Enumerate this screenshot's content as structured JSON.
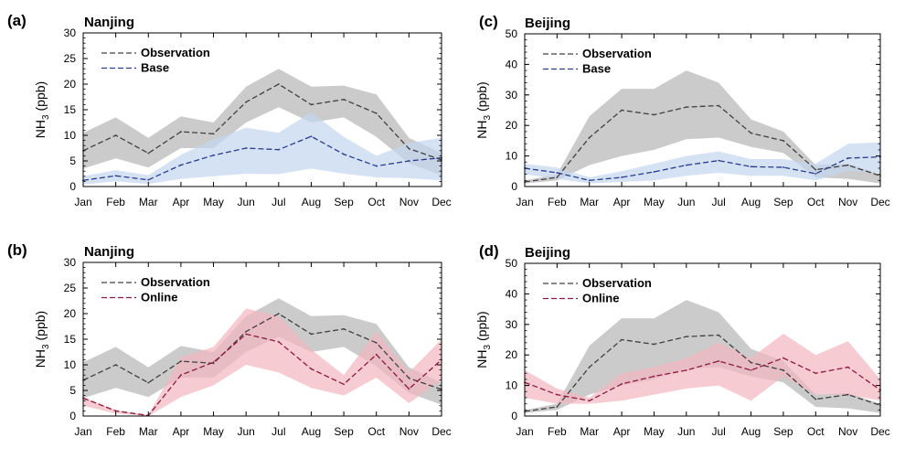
{
  "chart_data": [
    {
      "panel": "(a)",
      "type": "line",
      "title": "Nanjing",
      "ylabel_main": "NH",
      "ylabel_sub": "3",
      "ylabel_unit": " (ppb)",
      "ylim": [
        0,
        30
      ],
      "yticks": [
        0,
        5,
        10,
        15,
        20,
        25,
        30
      ],
      "categories": [
        "Jan",
        "Feb",
        "Mar",
        "Apr",
        "May",
        "Jun",
        "Jul",
        "Aug",
        "Sep",
        "Oct",
        "Nov",
        "Dec"
      ],
      "series": [
        {
          "name": "Observation",
          "color": "#404040",
          "band_color": "#c8c8c8",
          "values": [
            7,
            10,
            6.5,
            10.7,
            10.3,
            16.5,
            20,
            16,
            17,
            14.3,
            7.4,
            5.2
          ],
          "upper": [
            10.5,
            13.5,
            9.5,
            13.7,
            12.5,
            19.5,
            23,
            19.5,
            19.7,
            18,
            9.5,
            6.5
          ],
          "lower": [
            3.5,
            5.5,
            3.7,
            7.5,
            7.5,
            12.5,
            15.5,
            12.5,
            13.5,
            9.7,
            4.5,
            2.2
          ]
        },
        {
          "name": "Base",
          "color": "#2a3c8c",
          "band_color": "#c3d5ee",
          "values": [
            1.2,
            2.1,
            1.3,
            4.2,
            6.1,
            7.5,
            7.2,
            9.8,
            6.3,
            4,
            5,
            5.6
          ],
          "upper": [
            2,
            3.2,
            2.2,
            6.2,
            9.2,
            11.5,
            10.5,
            14.5,
            9.7,
            6,
            8.5,
            9.5
          ],
          "lower": [
            0.4,
            1,
            0.5,
            1.5,
            2,
            2.5,
            2.4,
            3.5,
            2.5,
            1.8,
            1.6,
            1.2
          ]
        }
      ]
    },
    {
      "panel": "(b)",
      "type": "line",
      "title": "Nanjing",
      "ylabel_main": "NH",
      "ylabel_sub": "3",
      "ylabel_unit": " (ppb)",
      "ylim": [
        0,
        30
      ],
      "yticks": [
        0,
        5,
        10,
        15,
        20,
        25,
        30
      ],
      "categories": [
        "Jan",
        "Feb",
        "Mar",
        "Apr",
        "May",
        "Jun",
        "Jul",
        "Aug",
        "Sep",
        "Oct",
        "Nov",
        "Dec"
      ],
      "series": [
        {
          "name": "Observation",
          "color": "#404040",
          "band_color": "#c8c8c8",
          "values": [
            7,
            10,
            6.5,
            10.7,
            10.3,
            16.5,
            20,
            16,
            17,
            14.3,
            7.4,
            5.2
          ],
          "upper": [
            10.5,
            13.5,
            9.5,
            13.7,
            12.5,
            19.5,
            23,
            19.5,
            19.7,
            18,
            9.5,
            6.5
          ],
          "lower": [
            3.5,
            5.5,
            3.7,
            7.5,
            7.5,
            12.5,
            15.5,
            12.5,
            13.5,
            9.7,
            4.5,
            2.2
          ]
        },
        {
          "name": "Online",
          "color": "#8c1a3c",
          "band_color": "#f2b7bf",
          "values": [
            3.5,
            1,
            0.1,
            8,
            10.5,
            16,
            14.5,
            9.2,
            6.2,
            12,
            5.3,
            11
          ],
          "upper": [
            3.7,
            1.2,
            0.2,
            11.5,
            13.5,
            21,
            19.5,
            13,
            8,
            16.5,
            8.5,
            15
          ],
          "lower": [
            2,
            0.5,
            0,
            3.7,
            6,
            10,
            8.5,
            5.5,
            4,
            7.5,
            2.5,
            7
          ]
        }
      ]
    },
    {
      "panel": "(c)",
      "type": "line",
      "title": "Beijing",
      "ylabel_main": "NH",
      "ylabel_sub": "3",
      "ylabel_unit": " (ppb)",
      "ylim": [
        0,
        50
      ],
      "yticks": [
        0,
        10,
        20,
        30,
        40,
        50
      ],
      "categories": [
        "Jan",
        "Feb",
        "Mar",
        "Apr",
        "May",
        "Jun",
        "Jul",
        "Aug",
        "Sep",
        "Oct",
        "Nov",
        "Dec"
      ],
      "series": [
        {
          "name": "Observation",
          "color": "#404040",
          "band_color": "#c8c8c8",
          "values": [
            1.5,
            3,
            16,
            25,
            23.5,
            26,
            26.5,
            17.5,
            15,
            5.5,
            7,
            3.5
          ],
          "upper": [
            2,
            4,
            23,
            32,
            32,
            38,
            34,
            22,
            18,
            7,
            7.5,
            4
          ],
          "lower": [
            1,
            2,
            7,
            10,
            12,
            15.5,
            16,
            13,
            11,
            3,
            2.5,
            1
          ]
        },
        {
          "name": "Base",
          "color": "#2a3c8c",
          "band_color": "#c3d5ee",
          "values": [
            6,
            4.5,
            2,
            3,
            4.8,
            7,
            8.5,
            6.5,
            6.3,
            4.2,
            9.3,
            9.7
          ],
          "upper": [
            7.5,
            6.2,
            3,
            5,
            7.5,
            10,
            11.5,
            9,
            9,
            7.5,
            14,
            14.5
          ],
          "lower": [
            4,
            2.5,
            1,
            1.5,
            2,
            3.5,
            4.5,
            3.5,
            3.5,
            2,
            5,
            4.5
          ]
        }
      ]
    },
    {
      "panel": "(d)",
      "type": "line",
      "title": "Beijing",
      "ylabel_main": "NH",
      "ylabel_sub": "3",
      "ylabel_unit": " (ppb)",
      "ylim": [
        0,
        50
      ],
      "yticks": [
        0,
        10,
        20,
        30,
        40,
        50
      ],
      "categories": [
        "Jan",
        "Feb",
        "Mar",
        "Apr",
        "May",
        "Jun",
        "Jul",
        "Aug",
        "Sep",
        "Oct",
        "Nov",
        "Dec"
      ],
      "series": [
        {
          "name": "Observation",
          "color": "#404040",
          "band_color": "#c8c8c8",
          "values": [
            1.5,
            3,
            16,
            25,
            23.5,
            26,
            26.5,
            17.5,
            15,
            5.5,
            7,
            3.5
          ],
          "upper": [
            2,
            4,
            23,
            32,
            32,
            38,
            34,
            22,
            18,
            7,
            7.5,
            4
          ],
          "lower": [
            1,
            2,
            7,
            10,
            12,
            15.5,
            16,
            13,
            11,
            3,
            2.5,
            1
          ]
        },
        {
          "name": "Online",
          "color": "#8c1a3c",
          "band_color": "#f2b7bf",
          "values": [
            11,
            7,
            5,
            10.5,
            13,
            15,
            18,
            15,
            19,
            14,
            16,
            8.5
          ],
          "upper": [
            15,
            9,
            6,
            14,
            16,
            19,
            24,
            19,
            27,
            20,
            24.5,
            12
          ],
          "lower": [
            6,
            4,
            4,
            5,
            7,
            9,
            10,
            5,
            13,
            7,
            7,
            5
          ]
        }
      ]
    }
  ]
}
